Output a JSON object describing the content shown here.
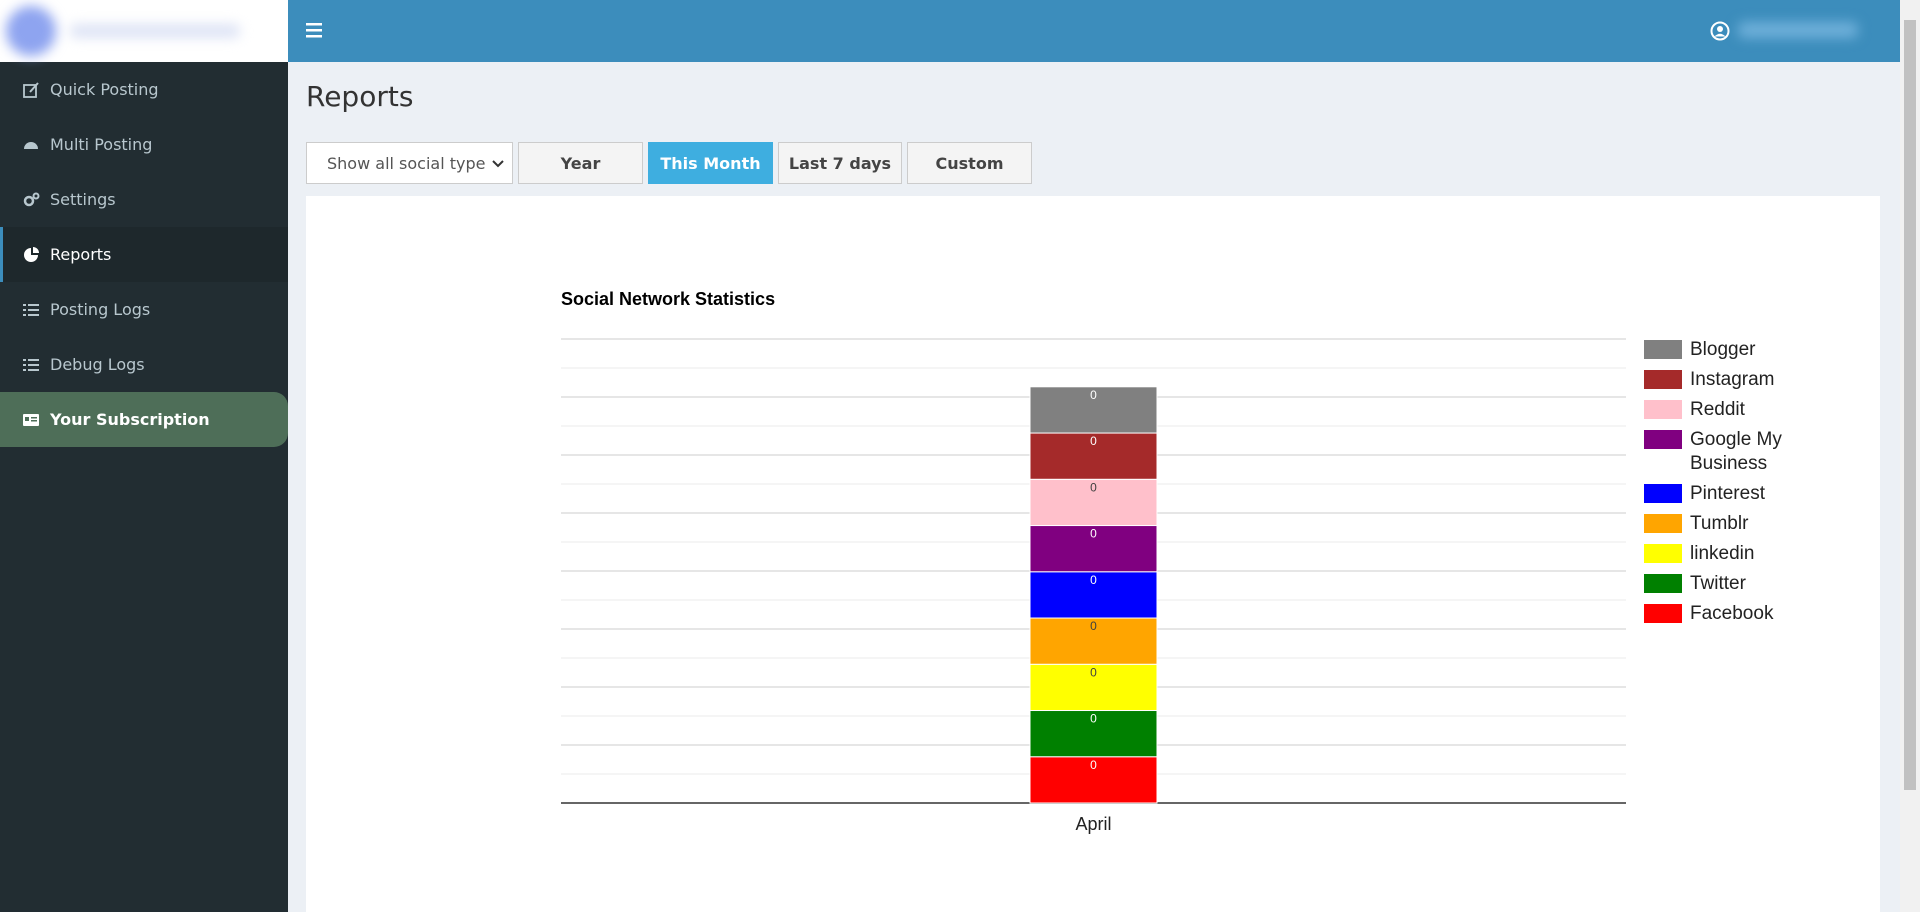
{
  "sidebar": {
    "items": [
      "Quick Posting",
      "Multi Posting",
      "Settings",
      "Reports",
      "Posting Logs",
      "Debug Logs",
      "Your Subscription"
    ]
  },
  "page": {
    "title": "Reports",
    "filter": "Show all social type",
    "buttons": [
      "Year",
      "This Month",
      "Last 7 days",
      "Custom"
    ]
  },
  "chart_data": {
    "type": "stacked-bar",
    "title": "Social Network Statistics",
    "categories": [
      "April"
    ],
    "series": [
      {
        "name": "Blogger",
        "color": "#808080",
        "values": [
          0
        ]
      },
      {
        "name": "Instagram",
        "color": "#a52a2a",
        "values": [
          0
        ]
      },
      {
        "name": "Reddit",
        "color": "#ffc0cb",
        "values": [
          0
        ]
      },
      {
        "name": "Google My Business",
        "color": "#800080",
        "values": [
          0
        ]
      },
      {
        "name": "Pinterest",
        "color": "#0000ff",
        "values": [
          0
        ]
      },
      {
        "name": "Tumblr",
        "color": "#ffa500",
        "values": [
          0
        ]
      },
      {
        "name": "linkedin",
        "color": "#ffff00",
        "values": [
          0
        ]
      },
      {
        "name": "Twitter",
        "color": "#008000",
        "values": [
          0
        ]
      },
      {
        "name": "Facebook",
        "color": "#ff0000",
        "values": [
          0
        ]
      }
    ],
    "legend": "right"
  }
}
